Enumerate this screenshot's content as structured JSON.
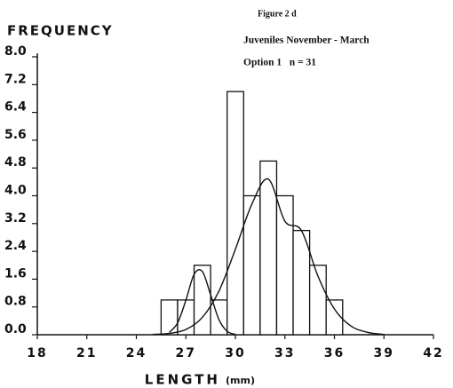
{
  "chart_data": {
    "type": "histogram",
    "title": "FREQUENCY",
    "annotations": [
      "Figure 2 d",
      "Juveniles November - March",
      "Option 1   n = 31"
    ],
    "xlabel": "LENGTH",
    "xlabel_unit": "(mm)",
    "bins": [
      25.5,
      26.5,
      27.5,
      28.5,
      29.5,
      30.5,
      31.5,
      32.5,
      33.5,
      34.5,
      35.5,
      36.5
    ],
    "values": [
      1,
      1,
      2,
      1,
      7,
      4,
      5,
      4,
      3,
      2,
      1
    ],
    "color": "#ffffff",
    "curves": [
      {
        "x": [
          26,
          26.5,
          27,
          27.5,
          28,
          28.5,
          29,
          29.5,
          30
        ],
        "values": [
          0.07,
          0.34,
          0.99,
          1.74,
          1.82,
          1.15,
          0.44,
          0.1,
          0.01
        ]
      },
      {
        "x": [
          25,
          26,
          27,
          28,
          29,
          30,
          31,
          32,
          33,
          34,
          35,
          36,
          37,
          38,
          39
        ],
        "values": [
          0.01,
          0.04,
          0.15,
          0.5,
          1.25,
          2.46,
          3.76,
          4.48,
          3.27,
          3.0,
          1.69,
          0.74,
          0.25,
          0.07,
          0.01
        ]
      }
    ],
    "xlim": [
      18,
      42
    ],
    "xticks": [
      18,
      21,
      24,
      27,
      30,
      33,
      36,
      39,
      42
    ],
    "ylim": [
      0,
      8
    ],
    "yticks": [
      {
        "value": 0,
        "label": "0.0"
      },
      {
        "value": 0.8,
        "label": "0.8"
      },
      {
        "value": 1.6,
        "label": "1.6"
      },
      {
        "value": 2.4,
        "label": "2.4"
      },
      {
        "value": 3.2,
        "label": "3.2"
      },
      {
        "value": 4,
        "label": "4.0"
      },
      {
        "value": 4.8,
        "label": "4.8"
      },
      {
        "value": 5.6,
        "label": "5.6"
      },
      {
        "value": 6.4,
        "label": "6.4"
      },
      {
        "value": 7.2,
        "label": "7.2"
      },
      {
        "value": 8,
        "label": "8.0"
      }
    ],
    "grid": false
  }
}
